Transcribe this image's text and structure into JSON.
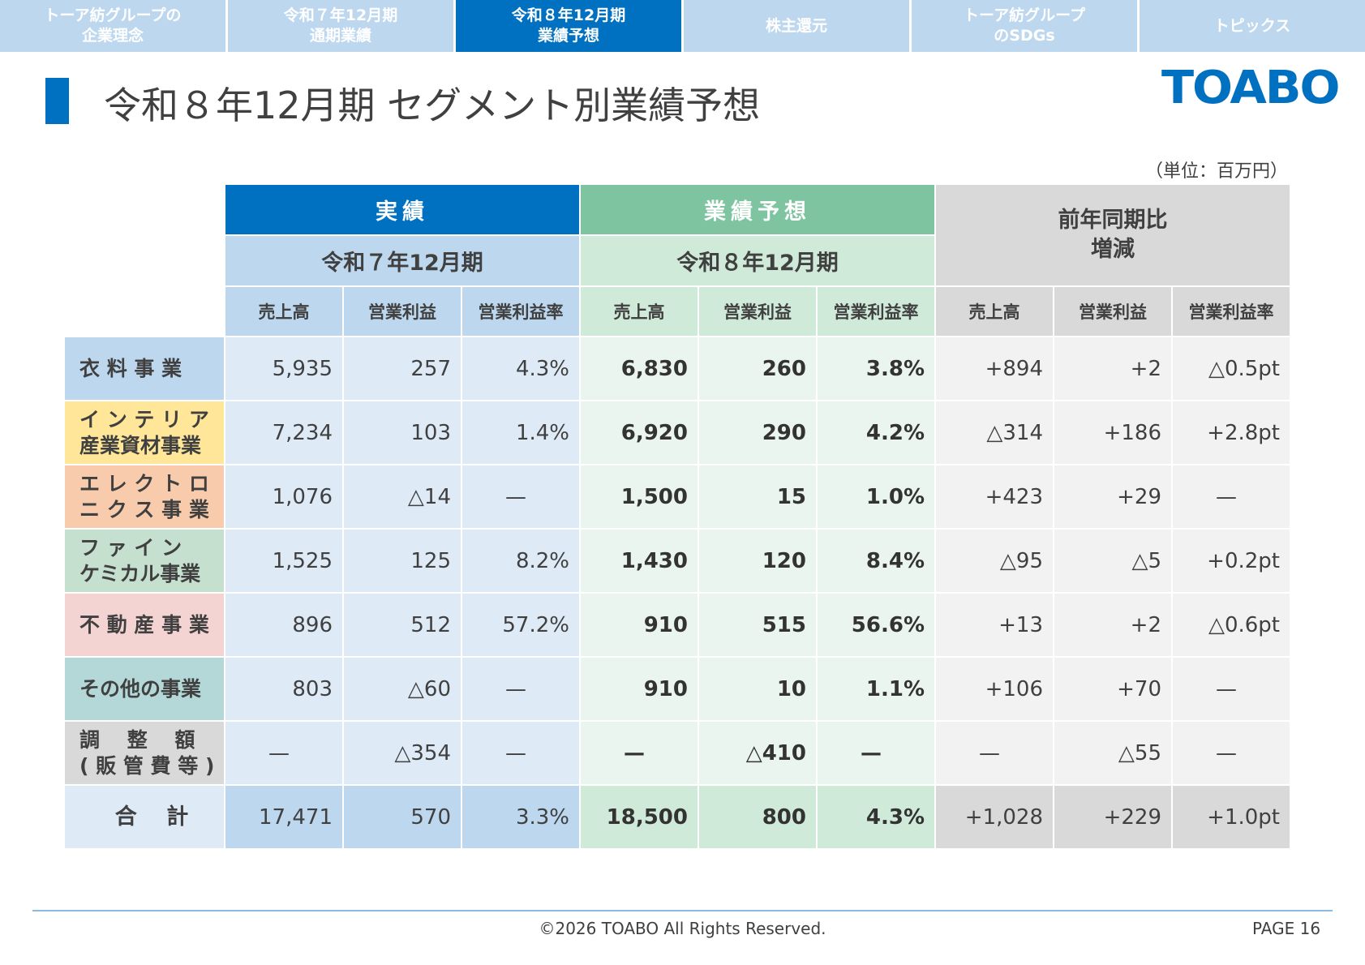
{
  "nav": {
    "tabs": [
      {
        "label": "トーア紡グループの\n企業理念",
        "active": false
      },
      {
        "label": "令和７年12月期\n通期業績",
        "active": false
      },
      {
        "label": "令和８年12月期\n業績予想",
        "active": true
      },
      {
        "label": "株主還元",
        "active": false
      },
      {
        "label": "トーア紡グループ\nのSDGs",
        "active": false
      },
      {
        "label": "トピックス",
        "active": false
      }
    ]
  },
  "page_title": "令和８年12月期 セグメント別業績予想",
  "logo": "TOABO",
  "unit": "（単位：百万円）",
  "table": {
    "group_actual": "実績",
    "group_forecast": "業績予想",
    "group_diff": "前年同期比\n増減",
    "period_actual": "令和７年12月期",
    "period_forecast": "令和８年12月期",
    "columns": {
      "sales": "売上高",
      "op_profit": "営業利益",
      "op_margin": "営業利益率"
    },
    "rows": [
      {
        "label": "衣 料 事 業",
        "color": "#bdd7ee",
        "values": [
          "5,935",
          "257",
          "4.3%",
          "6,830",
          "260",
          "3.8%",
          "+894",
          "+2",
          "△0.5pt"
        ]
      },
      {
        "label": "イ ン テ リ ア\n産業資材事業",
        "color": "#ffe699",
        "values": [
          "7,234",
          "103",
          "1.4%",
          "6,920",
          "290",
          "4.2%",
          "△314",
          "+186",
          "+2.8pt"
        ]
      },
      {
        "label": "エ レ ク ト ロ\nニ ク ス 事 業",
        "color": "#f8cbad",
        "values": [
          "1,076",
          "△14",
          "—",
          "1,500",
          "15",
          "1.0%",
          "+423",
          "+29",
          "—"
        ]
      },
      {
        "label": "フ ァ イ ン\nケミカル事業",
        "color": "#c6e0cf",
        "values": [
          "1,525",
          "125",
          "8.2%",
          "1,430",
          "120",
          "8.4%",
          "△95",
          "△5",
          "+0.2pt"
        ]
      },
      {
        "label": "不 動 産 事 業",
        "color": "#f4d3d3",
        "values": [
          "896",
          "512",
          "57.2%",
          "910",
          "515",
          "56.6%",
          "+13",
          "+2",
          "△0.6pt"
        ]
      },
      {
        "label": "その他の事業",
        "color": "#b4d8d8",
        "values": [
          "803",
          "△60",
          "—",
          "910",
          "10",
          "1.1%",
          "+106",
          "+70",
          "—"
        ]
      },
      {
        "label": "調　 整 　額\n( 販 管 費 等 )",
        "color": "#d9d9d9",
        "values": [
          "—",
          "△354",
          "—",
          "—",
          "△410",
          "—",
          "—",
          "△55",
          "—"
        ]
      }
    ],
    "total": {
      "label": "合 　計",
      "color": "#deebf7",
      "values": [
        "17,471",
        "570",
        "3.3%",
        "18,500",
        "800",
        "4.3%",
        "+1,028",
        "+229",
        "+1.0pt"
      ]
    }
  },
  "footer": {
    "copyright": "©2026 TOABO All Rights Reserved.",
    "page": "PAGE  16"
  }
}
